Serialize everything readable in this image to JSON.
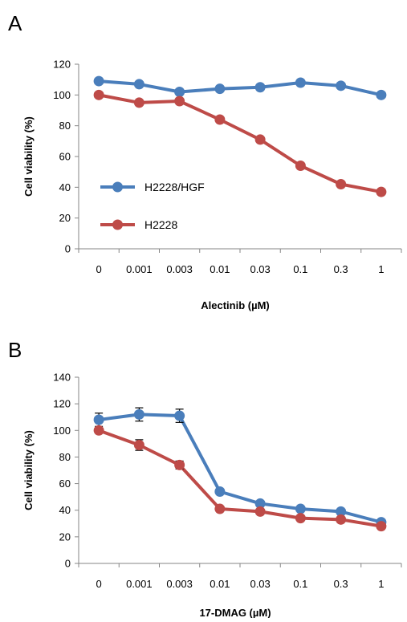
{
  "chart_data": [
    {
      "panel_label": "A",
      "type": "line",
      "categories": [
        "0",
        "0.001",
        "0.003",
        "0.01",
        "0.03",
        "0.1",
        "0.3",
        "1"
      ],
      "xlabel": "Alectinib (µM)",
      "ylabel": "Cell viability (%)",
      "ylim": [
        0,
        120
      ],
      "yticks": [
        0,
        20,
        40,
        60,
        80,
        100,
        120
      ],
      "grid": false,
      "legend_position": "left",
      "series": [
        {
          "name": "H2228/HGF",
          "color": "#4a7ebb",
          "values": [
            109,
            107,
            102,
            104,
            105,
            108,
            106,
            100
          ],
          "errors": []
        },
        {
          "name": "H2228",
          "color": "#be4b48",
          "values": [
            100,
            95,
            96,
            84,
            71,
            54,
            42,
            37
          ],
          "errors": []
        }
      ]
    },
    {
      "panel_label": "B",
      "type": "line",
      "categories": [
        "0",
        "0.001",
        "0.003",
        "0.01",
        "0.03",
        "0.1",
        "0.3",
        "1"
      ],
      "xlabel": "17-DMAG (µM)",
      "ylabel": "Cell viability (%)",
      "ylim": [
        0,
        140
      ],
      "yticks": [
        0,
        20,
        40,
        60,
        80,
        100,
        120,
        140
      ],
      "grid": false,
      "series": [
        {
          "name": "",
          "color": "#4a7ebb",
          "values": [
            108,
            112,
            111,
            54,
            45,
            41,
            39,
            31
          ],
          "errors": [
            5,
            5,
            5,
            0,
            0,
            0,
            0,
            0
          ]
        },
        {
          "name": "",
          "color": "#be4b48",
          "values": [
            100,
            89,
            74,
            41,
            39,
            34,
            33,
            28
          ],
          "errors": [
            0,
            4,
            3,
            0,
            0,
            0,
            0,
            0
          ]
        }
      ]
    }
  ]
}
